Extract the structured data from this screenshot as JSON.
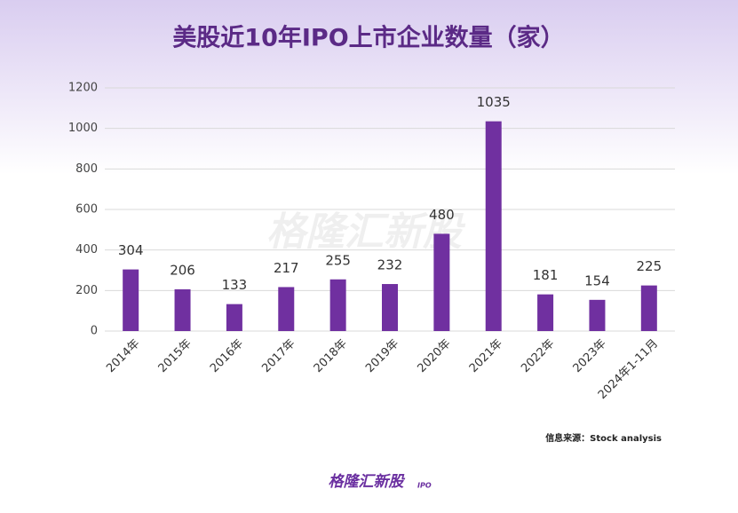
{
  "chart_data": {
    "type": "bar",
    "title": "美股近10年IPO上市企业数量（家）",
    "categories": [
      "2014年",
      "2015年",
      "2016年",
      "2017年",
      "2018年",
      "2019年",
      "2020年",
      "2021年",
      "2022年",
      "2023年",
      "2024年1-11月"
    ],
    "values": [
      304,
      206,
      133,
      217,
      255,
      232,
      480,
      1035,
      181,
      154,
      225
    ],
    "color": "#7030a0",
    "ylim": [
      0,
      1200
    ],
    "yticks": [
      0,
      200,
      400,
      600,
      800,
      1000,
      1200
    ],
    "grid": true,
    "source": "信息来源：Stock analysis",
    "brand": "格隆汇新股",
    "brand_tag": "IPO"
  }
}
